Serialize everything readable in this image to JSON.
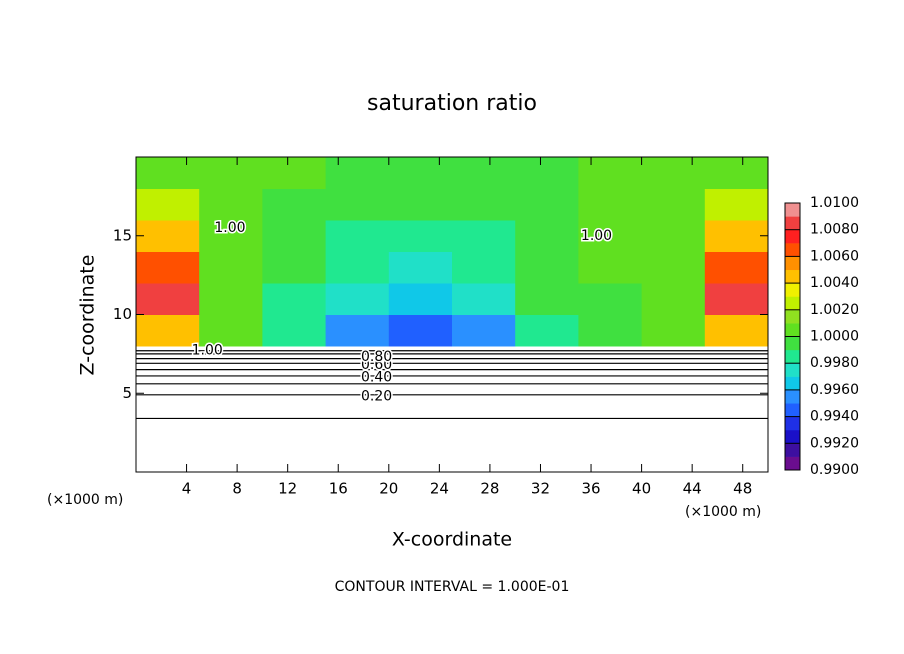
{
  "chart_data": {
    "type": "heatmap",
    "title": "saturation ratio",
    "xlabel": "X-coordinate",
    "ylabel": "Z-coordinate",
    "x_unit_left": "(×1000 m)",
    "x_unit_right": "(×1000 m)",
    "footer": "CONTOUR INTERVAL = 1.000E-01",
    "xlim": [
      0,
      50
    ],
    "ylim": [
      0,
      20
    ],
    "xticks": [
      4,
      8,
      12,
      16,
      20,
      24,
      28,
      32,
      36,
      40,
      44,
      48
    ],
    "yticks": [
      5,
      10,
      15
    ],
    "x_edges": [
      0,
      5,
      10,
      15,
      20,
      25,
      30,
      35,
      40,
      45,
      50
    ],
    "z_edges": [
      8,
      10,
      12,
      14,
      16,
      18,
      20
    ],
    "z_values": [
      [
        1.004,
        1.0,
        0.998,
        0.9955,
        0.994,
        0.995,
        0.998,
        0.999,
        1.0,
        1.004
      ],
      [
        1.009,
        1.001,
        0.9985,
        0.997,
        0.9965,
        0.997,
        0.999,
        0.9995,
        1.001,
        1.009
      ],
      [
        1.007,
        1.001,
        0.999,
        0.998,
        0.9975,
        0.998,
        0.999,
        1.0,
        1.001,
        1.007
      ],
      [
        1.005,
        1.001,
        0.9995,
        0.9985,
        0.998,
        0.9985,
        0.999,
        1.0,
        1.001,
        1.005
      ],
      [
        1.003,
        1.0,
        0.9995,
        0.999,
        0.999,
        0.999,
        0.9995,
        1.0,
        1.0,
        1.003
      ],
      [
        1.001,
        1.0,
        1.0,
        0.9995,
        0.9995,
        0.9995,
        0.9995,
        1.0,
        1.0,
        1.001
      ]
    ],
    "colorbar_lim": [
      0.99,
      1.01
    ],
    "colorbar_ticks": [
      {
        "value": 0.99,
        "label": "0.9900"
      },
      {
        "value": 0.992,
        "label": "0.9920"
      },
      {
        "value": 0.994,
        "label": "0.9940"
      },
      {
        "value": 0.996,
        "label": "0.9960"
      },
      {
        "value": 0.998,
        "label": "0.9980"
      },
      {
        "value": 1.0,
        "label": "1.0000"
      },
      {
        "value": 1.002,
        "label": "1.0020"
      },
      {
        "value": 1.004,
        "label": "1.0040"
      },
      {
        "value": 1.006,
        "label": "1.0060"
      },
      {
        "value": 1.008,
        "label": "1.0080"
      },
      {
        "value": 1.01,
        "label": "1.0100"
      }
    ],
    "colors": [
      "#6a0d8f",
      "#3d0fa0",
      "#1a10c8",
      "#1f30e6",
      "#2060ff",
      "#2a90ff",
      "#10c8e8",
      "#20e0c8",
      "#20e890",
      "#40e040",
      "#60e020",
      "#90e020",
      "#c0f000",
      "#f0f000",
      "#ffc000",
      "#ff9000",
      "#ff5000",
      "#ff2020",
      "#f04040",
      "#f09090"
    ],
    "contours": [
      {
        "level": 0.1,
        "z": 3.4
      },
      {
        "level": 0.2,
        "z": 4.9
      },
      {
        "level": 0.3,
        "z": 5.6
      },
      {
        "level": 0.4,
        "z": 6.1
      },
      {
        "level": 0.5,
        "z": 6.5
      },
      {
        "level": 0.6,
        "z": 6.9
      },
      {
        "level": 0.7,
        "z": 7.2
      },
      {
        "level": 0.8,
        "z": 7.5
      },
      {
        "level": 0.9,
        "z": 7.7
      }
    ],
    "contour_labels": [
      {
        "value": 0.2,
        "label": "0.20",
        "x": 17.8,
        "z": 4.8
      },
      {
        "value": 0.4,
        "label": "0.40",
        "x": 17.8,
        "z": 6.0
      },
      {
        "value": 0.6,
        "label": "0.60",
        "x": 17.8,
        "z": 6.8
      },
      {
        "value": 0.8,
        "label": "0.80",
        "x": 17.8,
        "z": 7.3
      },
      {
        "value": 1.0,
        "label": "1.00",
        "x": 4.4,
        "z": 7.7
      },
      {
        "value": 1.0,
        "label": "1.00",
        "x": 35.2,
        "z": 15.0
      },
      {
        "value": 1.0,
        "label": "1.00",
        "x": 6.2,
        "z": 15.5
      }
    ]
  }
}
